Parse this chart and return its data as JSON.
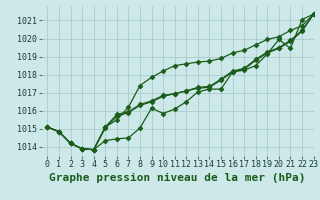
{
  "title": "Graphe pression niveau de la mer (hPa)",
  "bg_color": "#cce8e8",
  "grid_color": "#aacccc",
  "line_color": "#1a5c1a",
  "xlim": [
    -0.5,
    23
  ],
  "ylim": [
    1013.5,
    1021.8
  ],
  "yticks": [
    1014,
    1015,
    1016,
    1017,
    1018,
    1019,
    1020,
    1021
  ],
  "xticks": [
    0,
    1,
    2,
    3,
    4,
    5,
    6,
    7,
    8,
    9,
    10,
    11,
    12,
    13,
    14,
    15,
    16,
    17,
    18,
    19,
    20,
    21,
    22,
    23
  ],
  "series": [
    [
      1015.1,
      1014.85,
      1014.2,
      1013.9,
      1013.85,
      1015.1,
      1015.5,
      1016.2,
      1017.4,
      1017.85,
      1018.2,
      1018.5,
      1018.6,
      1018.7,
      1018.75,
      1018.9,
      1019.2,
      1019.35,
      1019.65,
      1019.95,
      1020.1,
      1020.45,
      1020.7,
      1021.35
    ],
    [
      1015.1,
      1014.85,
      1014.2,
      1013.9,
      1013.85,
      1015.1,
      1015.8,
      1015.95,
      1016.35,
      1016.55,
      1016.85,
      1016.95,
      1017.1,
      1017.3,
      1017.35,
      1017.75,
      1018.2,
      1018.35,
      1018.85,
      1019.25,
      1019.5,
      1019.9,
      1020.45,
      1021.35
    ],
    [
      1015.1,
      1014.85,
      1014.2,
      1013.9,
      1013.85,
      1014.35,
      1014.45,
      1014.5,
      1015.05,
      1016.15,
      1015.85,
      1016.1,
      1016.5,
      1017.05,
      1017.2,
      1017.2,
      1018.15,
      1018.25,
      1018.5,
      1019.15,
      1019.95,
      1019.45,
      1021.05,
      1021.35
    ],
    [
      1015.1,
      1014.85,
      1014.2,
      1013.9,
      1013.85,
      1015.05,
      1015.7,
      1015.9,
      1016.3,
      1016.5,
      1016.8,
      1016.95,
      1017.1,
      1017.25,
      1017.3,
      1017.7,
      1018.15,
      1018.3,
      1018.8,
      1019.2,
      1019.45,
      1019.85,
      1020.4,
      1021.35
    ]
  ],
  "marker": "D",
  "markersize": 2.5,
  "linewidth": 0.9,
  "title_fontsize": 8,
  "tick_fontsize": 6
}
